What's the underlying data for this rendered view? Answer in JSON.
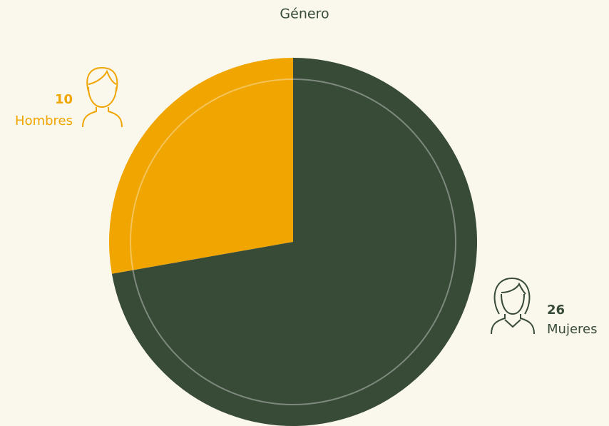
{
  "chart_data": {
    "type": "pie",
    "title": "Género",
    "categories": [
      "Hombres",
      "Mujeres"
    ],
    "values": [
      10,
      26
    ],
    "colors": [
      "#f0a500",
      "#374b37"
    ]
  }
}
